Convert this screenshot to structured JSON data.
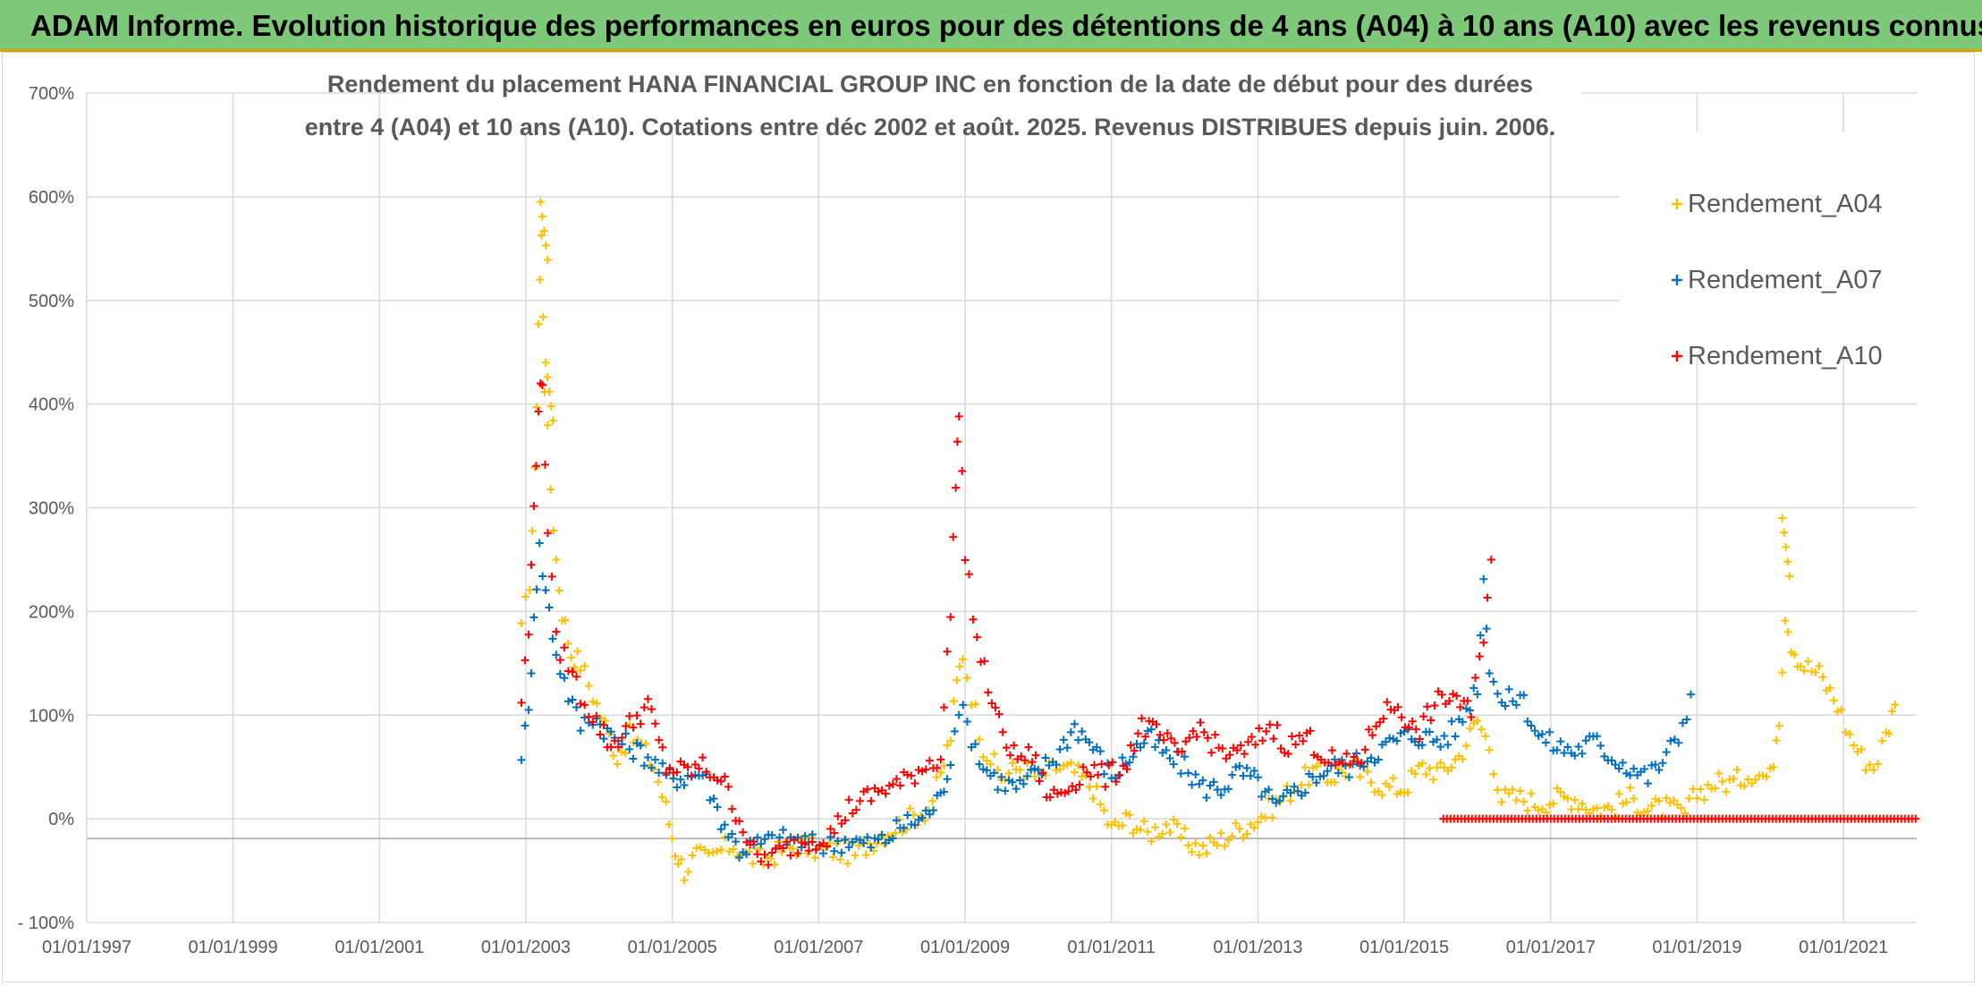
{
  "banner": {
    "title": "ADAM Informe. Evolution historique des performances en euros pour des détentions de 4 ans (A04) à 10 ans (A10) avec les revenus connus distribués"
  },
  "colors": {
    "banner_bg": "#7dc879",
    "A04": "#ffc000",
    "A07": "#0070c0",
    "A10": "#ff0000",
    "grid": "#d9d9d9",
    "text": "#595959"
  },
  "chart_data": {
    "type": "scatter",
    "title_line1": "Rendement du placement HANA FINANCIAL GROUP INC en fonction de la date de début pour des durées",
    "title_line2": "entre 4 (A04) et 10 ans (A10). Cotations entre déc 2002 et août. 2025. Revenus DISTRIBUES depuis juin. 2006.",
    "x_axis": {
      "type": "date",
      "range": [
        "1997-01-01",
        "2022-01-01"
      ],
      "tick_labels": [
        "01/01/1997",
        "01/01/1999",
        "01/01/2001",
        "01/01/2003",
        "01/01/2005",
        "01/01/2007",
        "01/01/2009",
        "01/01/2011",
        "01/01/2013",
        "01/01/2015",
        "01/01/2017",
        "01/01/2019",
        "01/01/2021"
      ],
      "tick_dates": [
        "1997-01-01",
        "1999-01-01",
        "2001-01-01",
        "2003-01-01",
        "2005-01-01",
        "2007-01-01",
        "2009-01-01",
        "2011-01-01",
        "2013-01-01",
        "2015-01-01",
        "2017-01-01",
        "2019-01-01",
        "2021-01-01"
      ]
    },
    "y_axis": {
      "unit": "%",
      "range": [
        -100,
        700
      ],
      "tick_values": [
        -100,
        0,
        100,
        200,
        300,
        400,
        500,
        600,
        700
      ],
      "tick_labels": [
        "- 100%",
        "0%",
        "100%",
        "200%",
        "300%",
        "400%",
        "500%",
        "600%",
        "700%"
      ]
    },
    "grid": true,
    "legend_position": "top-right",
    "series": [
      {
        "name": "Rendement_A04",
        "marker": "+",
        "points": [
          [
            "2002-12-10",
            180
          ],
          [
            "2003-01-20",
            230
          ],
          [
            "2003-02-15",
            330
          ],
          [
            "2003-03-05",
            480
          ],
          [
            "2003-03-20",
            560
          ],
          [
            "2003-04-05",
            420
          ],
          [
            "2003-05-05",
            320
          ],
          [
            "2003-06-01",
            250
          ],
          [
            "2003-07-01",
            200
          ],
          [
            "2003-08-15",
            160
          ],
          [
            "2003-10-01",
            150
          ],
          [
            "2003-12-01",
            120
          ],
          [
            "2004-02-01",
            90
          ],
          [
            "2004-04-01",
            60
          ],
          [
            "2004-06-01",
            80
          ],
          [
            "2004-08-01",
            70
          ],
          [
            "2004-10-01",
            50
          ],
          [
            "2004-12-01",
            10
          ],
          [
            "2005-01-15",
            -30
          ],
          [
            "2005-03-01",
            -50
          ],
          [
            "2005-05-01",
            -35
          ],
          [
            "2005-07-01",
            -40
          ],
          [
            "2005-09-01",
            -30
          ],
          [
            "2005-11-01",
            -25
          ],
          [
            "2006-01-01",
            -35
          ],
          [
            "2006-04-01",
            -40
          ],
          [
            "2006-07-01",
            -30
          ],
          [
            "2006-10-01",
            -25
          ],
          [
            "2007-01-01",
            -30
          ],
          [
            "2007-04-01",
            -30
          ],
          [
            "2007-07-01",
            -35
          ],
          [
            "2007-10-01",
            -20
          ],
          [
            "2008-01-01",
            -10
          ],
          [
            "2008-04-01",
            0
          ],
          [
            "2008-07-01",
            10
          ],
          [
            "2008-09-01",
            40
          ],
          [
            "2008-10-20",
            80
          ],
          [
            "2008-11-20",
            130
          ],
          [
            "2008-12-20",
            160
          ],
          [
            "2009-02-01",
            120
          ],
          [
            "2009-04-01",
            70
          ],
          [
            "2009-07-01",
            40
          ],
          [
            "2009-10-01",
            50
          ],
          [
            "2010-01-01",
            40
          ],
          [
            "2010-04-01",
            50
          ],
          [
            "2010-07-01",
            45
          ],
          [
            "2010-10-01",
            30
          ],
          [
            "2011-01-01",
            -10
          ],
          [
            "2011-04-01",
            0
          ],
          [
            "2011-07-01",
            -15
          ],
          [
            "2011-10-01",
            -5
          ],
          [
            "2012-01-01",
            -20
          ],
          [
            "2012-04-01",
            -30
          ],
          [
            "2012-07-01",
            -20
          ],
          [
            "2012-10-01",
            -10
          ],
          [
            "2013-01-01",
            0
          ],
          [
            "2013-04-01",
            15
          ],
          [
            "2013-07-01",
            30
          ],
          [
            "2013-10-01",
            45
          ],
          [
            "2014-01-01",
            40
          ],
          [
            "2014-04-01",
            50
          ],
          [
            "2014-07-01",
            40
          ],
          [
            "2014-10-01",
            30
          ],
          [
            "2015-01-01",
            30
          ],
          [
            "2015-04-01",
            50
          ],
          [
            "2015-07-01",
            45
          ],
          [
            "2015-10-01",
            60
          ],
          [
            "2016-01-01",
            95
          ],
          [
            "2016-03-01",
            70
          ],
          [
            "2016-05-01",
            20
          ],
          [
            "2016-08-01",
            20
          ],
          [
            "2016-11-01",
            15
          ],
          [
            "2017-02-01",
            20
          ],
          [
            "2017-05-01",
            20
          ],
          [
            "2017-08-01",
            10
          ],
          [
            "2017-11-01",
            10
          ],
          [
            "2018-02-01",
            20
          ],
          [
            "2018-05-01",
            10
          ],
          [
            "2018-08-01",
            10
          ],
          [
            "2018-11-01",
            5
          ],
          [
            "2019-01-01",
            25
          ],
          [
            "2019-04-01",
            35
          ],
          [
            "2019-07-01",
            35
          ],
          [
            "2019-10-01",
            45
          ],
          [
            "2020-01-01",
            40
          ],
          [
            "2020-02-15",
            100
          ],
          [
            "2020-03-15",
            200
          ],
          [
            "2020-04-15",
            170
          ],
          [
            "2020-06-01",
            150
          ],
          [
            "2020-09-01",
            140
          ],
          [
            "2020-12-01",
            110
          ],
          [
            "2021-02-01",
            80
          ],
          [
            "2021-04-01",
            60
          ],
          [
            "2021-06-01",
            50
          ],
          [
            "2021-08-01",
            80
          ],
          [
            "2021-09-15",
            110
          ]
        ],
        "peaks": [
          [
            "2003-03-15",
            595
          ],
          [
            "2003-04-10",
            440
          ],
          [
            "2020-03-01",
            290
          ]
        ]
      },
      {
        "name": "Rendement_A07",
        "marker": "+",
        "points": [
          [
            "2002-12-10",
            65
          ],
          [
            "2003-01-15",
            100
          ],
          [
            "2003-02-10",
            200
          ],
          [
            "2003-03-10",
            260
          ],
          [
            "2003-04-10",
            220
          ],
          [
            "2003-06-01",
            160
          ],
          [
            "2003-08-01",
            120
          ],
          [
            "2003-10-01",
            90
          ],
          [
            "2003-12-01",
            100
          ],
          [
            "2004-03-01",
            80
          ],
          [
            "2004-06-01",
            70
          ],
          [
            "2004-09-01",
            60
          ],
          [
            "2004-12-01",
            40
          ],
          [
            "2005-03-01",
            40
          ],
          [
            "2005-06-01",
            45
          ],
          [
            "2005-09-01",
            0
          ],
          [
            "2005-12-01",
            -30
          ],
          [
            "2006-03-01",
            -25
          ],
          [
            "2006-06-01",
            -20
          ],
          [
            "2006-09-01",
            -20
          ],
          [
            "2006-12-01",
            -25
          ],
          [
            "2007-03-01",
            -25
          ],
          [
            "2007-06-01",
            -20
          ],
          [
            "2007-09-01",
            -25
          ],
          [
            "2007-12-01",
            -20
          ],
          [
            "2008-03-01",
            -5
          ],
          [
            "2008-06-01",
            0
          ],
          [
            "2008-09-01",
            20
          ],
          [
            "2008-10-20",
            60
          ],
          [
            "2008-12-01",
            110
          ],
          [
            "2009-02-01",
            80
          ],
          [
            "2009-04-01",
            50
          ],
          [
            "2009-07-01",
            35
          ],
          [
            "2009-10-01",
            30
          ],
          [
            "2010-01-01",
            45
          ],
          [
            "2010-04-01",
            60
          ],
          [
            "2010-07-01",
            90
          ],
          [
            "2010-10-01",
            70
          ],
          [
            "2011-01-01",
            40
          ],
          [
            "2011-04-01",
            60
          ],
          [
            "2011-07-01",
            80
          ],
          [
            "2011-10-01",
            60
          ],
          [
            "2012-01-01",
            50
          ],
          [
            "2012-04-01",
            30
          ],
          [
            "2012-07-01",
            30
          ],
          [
            "2012-10-01",
            45
          ],
          [
            "2013-01-01",
            35
          ],
          [
            "2013-04-01",
            10
          ],
          [
            "2013-07-01",
            25
          ],
          [
            "2013-10-01",
            40
          ],
          [
            "2014-01-01",
            50
          ],
          [
            "2014-04-01",
            50
          ],
          [
            "2014-07-01",
            60
          ],
          [
            "2014-10-01",
            70
          ],
          [
            "2015-01-01",
            80
          ],
          [
            "2015-04-01",
            80
          ],
          [
            "2015-07-01",
            75
          ],
          [
            "2015-10-01",
            90
          ],
          [
            "2016-01-01",
            130
          ],
          [
            "2016-02-01",
            230
          ],
          [
            "2016-03-01",
            150
          ],
          [
            "2016-05-01",
            110
          ],
          [
            "2016-08-01",
            120
          ],
          [
            "2016-11-01",
            80
          ],
          [
            "2017-02-01",
            70
          ],
          [
            "2017-05-01",
            65
          ],
          [
            "2017-08-01",
            75
          ],
          [
            "2017-11-01",
            60
          ],
          [
            "2018-02-01",
            50
          ],
          [
            "2018-05-01",
            40
          ],
          [
            "2018-08-01",
            60
          ],
          [
            "2018-10-01",
            80
          ],
          [
            "2018-12-01",
            120
          ]
        ]
      },
      {
        "name": "Rendement_A10",
        "marker": "+",
        "points": [
          [
            "2002-12-10",
            115
          ],
          [
            "2003-01-15",
            180
          ],
          [
            "2003-02-10",
            300
          ],
          [
            "2003-03-05",
            400
          ],
          [
            "2003-03-25",
            420
          ],
          [
            "2003-04-20",
            280
          ],
          [
            "2003-06-01",
            170
          ],
          [
            "2003-08-01",
            150
          ],
          [
            "2003-10-01",
            120
          ],
          [
            "2003-12-01",
            100
          ],
          [
            "2004-03-01",
            70
          ],
          [
            "2004-06-01",
            90
          ],
          [
            "2004-09-01",
            110
          ],
          [
            "2004-12-01",
            50
          ],
          [
            "2005-03-01",
            45
          ],
          [
            "2005-06-01",
            50
          ],
          [
            "2005-09-01",
            40
          ],
          [
            "2005-12-01",
            0
          ],
          [
            "2006-03-01",
            -40
          ],
          [
            "2006-06-01",
            -35
          ],
          [
            "2006-09-01",
            -25
          ],
          [
            "2006-12-01",
            -20
          ],
          [
            "2007-03-01",
            -15
          ],
          [
            "2007-06-01",
            10
          ],
          [
            "2007-09-01",
            20
          ],
          [
            "2007-12-01",
            30
          ],
          [
            "2008-03-01",
            35
          ],
          [
            "2008-06-01",
            50
          ],
          [
            "2008-09-01",
            60
          ],
          [
            "2008-10-20",
            200
          ],
          [
            "2008-11-15",
            330
          ],
          [
            "2008-12-01",
            390
          ],
          [
            "2009-01-01",
            260
          ],
          [
            "2009-03-01",
            170
          ],
          [
            "2009-06-01",
            100
          ],
          [
            "2009-09-01",
            60
          ],
          [
            "2009-12-01",
            60
          ],
          [
            "2010-03-01",
            20
          ],
          [
            "2010-06-01",
            30
          ],
          [
            "2010-09-01",
            50
          ],
          [
            "2010-12-01",
            40
          ],
          [
            "2011-03-01",
            50
          ],
          [
            "2011-06-01",
            90
          ],
          [
            "2011-09-01",
            80
          ],
          [
            "2011-12-01",
            60
          ],
          [
            "2012-03-01",
            90
          ],
          [
            "2012-06-01",
            70
          ],
          [
            "2012-09-01",
            60
          ],
          [
            "2012-12-01",
            70
          ],
          [
            "2013-03-01",
            90
          ],
          [
            "2013-06-01",
            70
          ],
          [
            "2013-09-01",
            80
          ],
          [
            "2013-12-01",
            60
          ],
          [
            "2014-03-01",
            50
          ],
          [
            "2014-06-01",
            60
          ],
          [
            "2014-09-01",
            100
          ],
          [
            "2014-12-01",
            110
          ],
          [
            "2015-03-01",
            80
          ],
          [
            "2015-06-01",
            110
          ],
          [
            "2015-09-01",
            120
          ],
          [
            "2015-12-01",
            100
          ],
          [
            "2016-02-01",
            180
          ],
          [
            "2016-03-10",
            250
          ]
        ],
        "flat_segment": {
          "from": "2015-07-15",
          "to": "2022-01-01",
          "value": 0
        }
      }
    ]
  }
}
